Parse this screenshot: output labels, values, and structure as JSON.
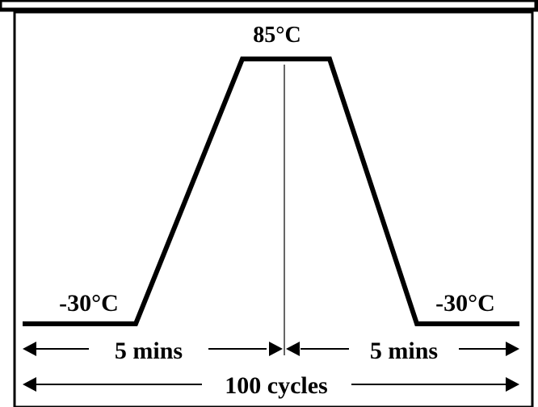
{
  "profile": {
    "peak_temp_label": "85°C",
    "start_temp_label": "-30°C",
    "end_temp_label": "-30°C"
  },
  "durations": {
    "left_label": "5 mins",
    "right_label": "5 mins",
    "total_label": "100 cycles"
  },
  "colors": {
    "line": "#000000",
    "background": "#ffffff"
  }
}
